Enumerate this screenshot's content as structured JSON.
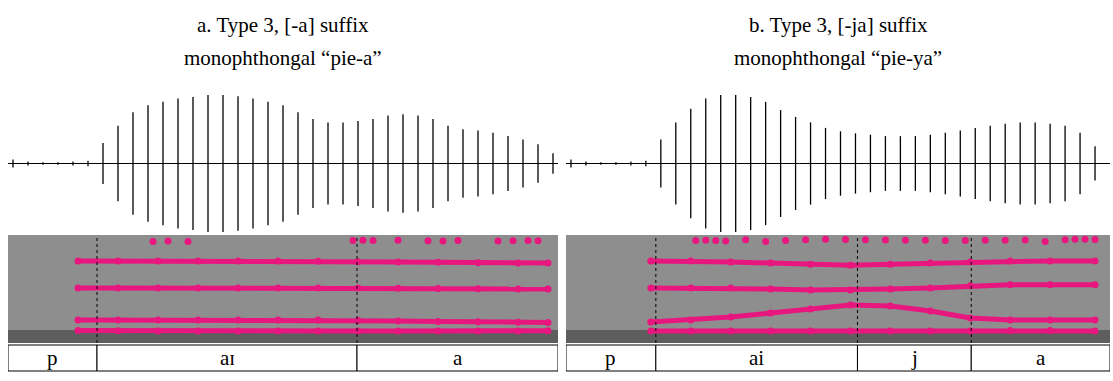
{
  "chart_data": [
    {
      "type": "line",
      "title": "a. Type 3, [-a] suffix",
      "subtitle": "monophthongal “pie-a”",
      "xlim": [
        0,
        0.55
      ],
      "ylim": [
        0,
        5000
      ],
      "grid": false,
      "tick_labels": false,
      "waveform": {
        "ylim": [
          -1,
          1
        ],
        "x": [
          0.005,
          0.02,
          0.035,
          0.05,
          0.065,
          0.08,
          0.095,
          0.11,
          0.125,
          0.14,
          0.155,
          0.17,
          0.185,
          0.2,
          0.215,
          0.23,
          0.245,
          0.26,
          0.275,
          0.29,
          0.305,
          0.32,
          0.335,
          0.35,
          0.365,
          0.38,
          0.395,
          0.41,
          0.425,
          0.44,
          0.455,
          0.47,
          0.485,
          0.5,
          0.515,
          0.53,
          0.545
        ],
        "values": [
          0.06,
          0.03,
          0.02,
          0.02,
          0.03,
          0.04,
          0.3,
          0.55,
          0.75,
          0.85,
          0.9,
          0.95,
          0.97,
          1.0,
          1.0,
          0.98,
          0.95,
          0.9,
          0.85,
          0.75,
          0.65,
          0.6,
          0.6,
          0.62,
          0.65,
          0.7,
          0.72,
          0.7,
          0.65,
          0.55,
          0.5,
          0.48,
          0.45,
          0.4,
          0.35,
          0.28,
          0.15
        ]
      },
      "series": [
        {
          "color": "#e8177f",
          "marker": "circle",
          "line_style": "solid",
          "x": [
            0.07,
            0.11,
            0.15,
            0.19,
            0.23,
            0.27,
            0.31,
            0.35,
            0.39,
            0.43,
            0.47,
            0.51,
            0.54
          ],
          "values": [
            580,
            570,
            560,
            560,
            560,
            560,
            560,
            560,
            560,
            560,
            560,
            560,
            570
          ]
        },
        {
          "color": "#e8177f",
          "marker": "circle",
          "line_style": "solid",
          "x": [
            0.07,
            0.11,
            0.15,
            0.19,
            0.23,
            0.27,
            0.31,
            0.35,
            0.39,
            0.43,
            0.47,
            0.51,
            0.54
          ],
          "values": [
            1060,
            1060,
            1060,
            1060,
            1060,
            1060,
            1060,
            1040,
            1020,
            1000,
            980,
            960,
            950
          ]
        },
        {
          "color": "#e8177f",
          "marker": "circle",
          "line_style": "solid",
          "x": [
            0.07,
            0.11,
            0.15,
            0.19,
            0.23,
            0.27,
            0.31,
            0.35,
            0.39,
            0.43,
            0.47,
            0.51,
            0.54
          ],
          "values": [
            2550,
            2550,
            2550,
            2550,
            2550,
            2550,
            2550,
            2550,
            2530,
            2520,
            2510,
            2500,
            2500
          ]
        },
        {
          "color": "#e8177f",
          "marker": "circle",
          "line_style": "solid",
          "x": [
            0.07,
            0.11,
            0.15,
            0.19,
            0.23,
            0.27,
            0.31,
            0.35,
            0.39,
            0.43,
            0.47,
            0.51,
            0.54
          ],
          "values": [
            3800,
            3800,
            3800,
            3800,
            3800,
            3800,
            3780,
            3760,
            3750,
            3740,
            3720,
            3700,
            3700
          ]
        },
        {
          "color": "#e8177f",
          "marker": "circle",
          "line_style": "none",
          "x": [
            0.145,
            0.16,
            0.18,
            0.345,
            0.355,
            0.365,
            0.39,
            0.42,
            0.435,
            0.45,
            0.49,
            0.505,
            0.52,
            0.53
          ],
          "values": [
            4700,
            4720,
            4700,
            4750,
            4760,
            4740,
            4760,
            4730,
            4720,
            4740,
            4720,
            4730,
            4740,
            4730
          ]
        }
      ],
      "segments": [
        {
          "label": "p",
          "start": 0,
          "end": 0.089
        },
        {
          "label": "aɪ",
          "start": 0.089,
          "end": 0.349
        },
        {
          "label": "a",
          "start": 0.349,
          "end": 0.55
        }
      ]
    },
    {
      "type": "line",
      "title": "b. Type 3, [-ja] suffix",
      "subtitle": "monophthongal “pie-ya”",
      "xlim": [
        0,
        0.545
      ],
      "ylim": [
        0,
        5000
      ],
      "grid": false,
      "tick_labels": false,
      "waveform": {
        "ylim": [
          -1,
          1
        ],
        "x": [
          0.005,
          0.02,
          0.035,
          0.05,
          0.065,
          0.08,
          0.095,
          0.11,
          0.125,
          0.14,
          0.155,
          0.17,
          0.185,
          0.2,
          0.215,
          0.23,
          0.245,
          0.26,
          0.275,
          0.29,
          0.305,
          0.32,
          0.335,
          0.35,
          0.365,
          0.38,
          0.395,
          0.41,
          0.425,
          0.44,
          0.455,
          0.47,
          0.485,
          0.5,
          0.515,
          0.53
        ],
        "values": [
          0.06,
          0.03,
          0.02,
          0.02,
          0.03,
          0.04,
          0.35,
          0.6,
          0.8,
          0.95,
          1.0,
          1.0,
          0.97,
          0.9,
          0.78,
          0.68,
          0.6,
          0.52,
          0.47,
          0.44,
          0.42,
          0.4,
          0.4,
          0.4,
          0.42,
          0.45,
          0.48,
          0.52,
          0.55,
          0.58,
          0.6,
          0.6,
          0.58,
          0.55,
          0.45,
          0.25
        ]
      },
      "series": [
        {
          "color": "#e8177f",
          "marker": "circle",
          "line_style": "solid",
          "x": [
            0.085,
            0.125,
            0.165,
            0.205,
            0.245,
            0.285,
            0.325,
            0.365,
            0.405,
            0.445,
            0.485,
            0.53
          ],
          "values": [
            560,
            560,
            560,
            560,
            560,
            550,
            550,
            550,
            560,
            580,
            580,
            560
          ]
        },
        {
          "color": "#e8177f",
          "marker": "circle",
          "line_style": "solid",
          "x": [
            0.085,
            0.125,
            0.165,
            0.205,
            0.245,
            0.285,
            0.325,
            0.365,
            0.405,
            0.445,
            0.485,
            0.53
          ],
          "values": [
            970,
            1060,
            1200,
            1390,
            1570,
            1760,
            1710,
            1480,
            1160,
            1060,
            1060,
            1060
          ]
        },
        {
          "color": "#e8177f",
          "marker": "circle",
          "line_style": "solid",
          "x": [
            0.085,
            0.125,
            0.165,
            0.205,
            0.245,
            0.285,
            0.325,
            0.365,
            0.405,
            0.445,
            0.485,
            0.53
          ],
          "values": [
            2550,
            2550,
            2550,
            2500,
            2450,
            2450,
            2500,
            2550,
            2650,
            2700,
            2700,
            2700
          ]
        },
        {
          "color": "#e8177f",
          "marker": "circle",
          "line_style": "solid",
          "x": [
            0.085,
            0.125,
            0.165,
            0.205,
            0.245,
            0.285,
            0.325,
            0.365,
            0.405,
            0.445,
            0.485,
            0.53
          ],
          "values": [
            3800,
            3800,
            3750,
            3700,
            3650,
            3600,
            3650,
            3700,
            3750,
            3800,
            3800,
            3800
          ]
        },
        {
          "color": "#e8177f",
          "marker": "circle",
          "line_style": "none",
          "x": [
            0.13,
            0.14,
            0.15,
            0.16,
            0.18,
            0.2,
            0.22,
            0.24,
            0.26,
            0.28,
            0.3,
            0.32,
            0.34,
            0.36,
            0.38,
            0.4,
            0.42,
            0.44,
            0.46,
            0.48,
            0.5,
            0.51,
            0.52,
            0.53
          ],
          "values": [
            4750,
            4760,
            4740,
            4720,
            4780,
            4700,
            4740,
            4780,
            4800,
            4790,
            4780,
            4770,
            4760,
            4760,
            4750,
            4750,
            4760,
            4760,
            4770,
            4700,
            4780,
            4800,
            4800,
            4790
          ]
        }
      ],
      "segments": [
        {
          "label": "p",
          "start": 0,
          "end": 0.09
        },
        {
          "label": "ai",
          "start": 0.09,
          "end": 0.292
        },
        {
          "label": "j",
          "start": 0.292,
          "end": 0.406
        },
        {
          "label": "a",
          "start": 0.406,
          "end": 0.545
        }
      ]
    }
  ]
}
